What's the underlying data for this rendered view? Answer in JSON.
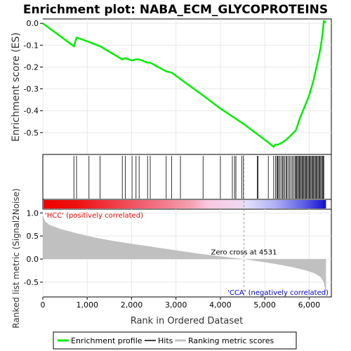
{
  "chart_data": {
    "type": "line",
    "title": "Enrichment plot: NABA_ECM_GLYCOPROTEINS",
    "xlabel": "Rank in Ordered Dataset",
    "ylabel_top": "Enrichment score (ES)",
    "ylabel_bottom": "Ranked list metric (Signal2Noise)",
    "x_ticks": [
      "0",
      "1,000",
      "2,000",
      "3,000",
      "4,000",
      "5,000",
      "6,000"
    ],
    "x_tick_values": [
      0,
      1000,
      2000,
      3000,
      4000,
      5000,
      6000
    ],
    "xlim": [
      0,
      6500
    ],
    "es_y_ticks": [
      "0.0",
      "-0.1",
      "-0.2",
      "-0.3",
      "-0.4",
      "-0.5"
    ],
    "es_y_tick_values": [
      0,
      -0.1,
      -0.2,
      -0.3,
      -0.4,
      -0.5
    ],
    "es_ylim": [
      -0.6,
      0.02
    ],
    "metric_y_ticks": [
      "1.0",
      "0.5",
      "0.0",
      "-0.5"
    ],
    "metric_y_tick_values": [
      1.0,
      0.5,
      0.0,
      -0.5
    ],
    "metric_ylim": [
      -0.82,
      1.08
    ],
    "grid": true,
    "zero_cross_label": "Zero cross at 4531",
    "zero_cross_rank": 4531,
    "pos_label": "'HCC' (positively correlated)",
    "neg_label": "'CCA' (negatively correlated)",
    "es_color": "#00ee00",
    "pos_color": "#ff0000",
    "neg_color": "#0000ff",
    "hit_ranks": [
      700,
      760,
      1040,
      1290,
      1790,
      1860,
      2010,
      2100,
      2170,
      2360,
      2420,
      2780,
      2900,
      3100,
      3610,
      4000,
      4270,
      4320,
      4350,
      4480,
      4520,
      4830,
      4850,
      5080,
      5200,
      5240,
      5270,
      5290,
      5310,
      5340,
      5370,
      5400,
      5420,
      5450,
      5480,
      5500,
      5530,
      5560,
      5590,
      5620,
      5650,
      5680,
      5700,
      5720,
      5740,
      5760,
      5780,
      5800,
      5820,
      5840,
      5860,
      5880,
      5900,
      5920,
      5940,
      5960,
      5980,
      6000,
      6020,
      6040,
      6060,
      6080,
      6100,
      6120,
      6140,
      6160,
      6180,
      6200,
      6220,
      6240,
      6260,
      6280,
      6300,
      6320,
      6330
    ],
    "series": [
      {
        "name": "Enrichment profile",
        "x": [
          0,
          700,
          760,
          1040,
          1290,
          1790,
          1860,
          2010,
          2100,
          2170,
          2360,
          2420,
          2780,
          2900,
          3100,
          3610,
          4000,
          4300,
          4520,
          4850,
          5080,
          5200,
          5240,
          5300,
          5400,
          5500,
          5600,
          5700,
          5800,
          5900,
          6000,
          6100,
          6200,
          6260,
          6300,
          6330,
          6380
        ],
        "y": [
          0.0,
          -0.105,
          -0.065,
          -0.085,
          -0.105,
          -0.165,
          -0.16,
          -0.17,
          -0.165,
          -0.165,
          -0.18,
          -0.18,
          -0.22,
          -0.225,
          -0.255,
          -0.33,
          -0.39,
          -0.43,
          -0.46,
          -0.51,
          -0.545,
          -0.565,
          -0.555,
          -0.555,
          -0.545,
          -0.53,
          -0.51,
          -0.49,
          -0.43,
          -0.38,
          -0.33,
          -0.26,
          -0.17,
          -0.11,
          -0.05,
          0.01,
          0.005
        ]
      },
      {
        "name": "Ranking metric scores",
        "x": [
          0,
          50,
          150,
          400,
          800,
          1200,
          1600,
          2000,
          2500,
          3000,
          3500,
          4000,
          4400,
          4531,
          4800,
          5200,
          5600,
          5900,
          6100,
          6250,
          6330,
          6380
        ],
        "y": [
          0.95,
          0.82,
          0.74,
          0.65,
          0.55,
          0.46,
          0.39,
          0.33,
          0.26,
          0.19,
          0.12,
          0.06,
          0.015,
          0.0,
          -0.04,
          -0.1,
          -0.17,
          -0.24,
          -0.3,
          -0.38,
          -0.5,
          -0.78
        ]
      }
    ],
    "legend": {
      "placement": "bottom",
      "items": [
        "Enrichment profile",
        "Hits",
        "Ranking metric scores"
      ]
    }
  }
}
